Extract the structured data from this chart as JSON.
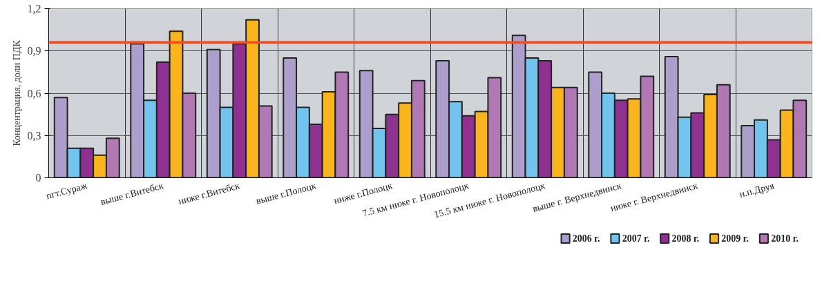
{
  "chart_data": {
    "type": "bar",
    "ylabel": "Концентрация, доли ПДК",
    "categories": [
      "пгт.Сураж",
      "выше г.Витебск",
      "ниже г.Витебск",
      "выше г.Полоцк",
      "ниже г.Полоцк",
      "7.5 км ниже г. Новополоцк",
      "15.5 км ниже г. Новополоцк",
      "выше г. Верхнедвинск",
      "ниже г. Верхнедвинск",
      "н.п.Друя"
    ],
    "series": [
      {
        "name": "2006 г.",
        "color": "#ad9fcb",
        "values": [
          0.57,
          0.95,
          0.91,
          0.85,
          0.76,
          0.83,
          1.01,
          0.75,
          0.86,
          0.37
        ]
      },
      {
        "name": "2007 г.",
        "color": "#72c4ee",
        "values": [
          0.21,
          0.55,
          0.5,
          0.5,
          0.35,
          0.54,
          0.85,
          0.6,
          0.43,
          0.41
        ]
      },
      {
        "name": "2008 г.",
        "color": "#8e3191",
        "values": [
          0.21,
          0.82,
          0.95,
          0.38,
          0.45,
          0.44,
          0.83,
          0.55,
          0.46,
          0.27
        ]
      },
      {
        "name": "2009 г.",
        "color": "#fab51e",
        "values": [
          0.16,
          1.04,
          1.12,
          0.61,
          0.53,
          0.47,
          0.64,
          0.56,
          0.59,
          0.48
        ]
      },
      {
        "name": "2010 г.",
        "color": "#b079b3",
        "values": [
          0.28,
          0.6,
          0.51,
          0.75,
          0.69,
          0.71,
          0.64,
          0.72,
          0.66,
          0.55
        ]
      }
    ],
    "ylim": [
      0,
      1.2
    ],
    "yticks": [
      0,
      {
        "value": 0.3,
        "label": "0,3"
      },
      {
        "value": 0.6,
        "label": "0,6"
      },
      {
        "value": 0.9,
        "label": "0,9"
      },
      {
        "value": 1.2,
        "label": "1,2"
      }
    ],
    "ref_lines": [
      {
        "axis": "y",
        "value": 0.96,
        "color": "#f04e23"
      }
    ],
    "grid": true,
    "legend": "bottom"
  }
}
